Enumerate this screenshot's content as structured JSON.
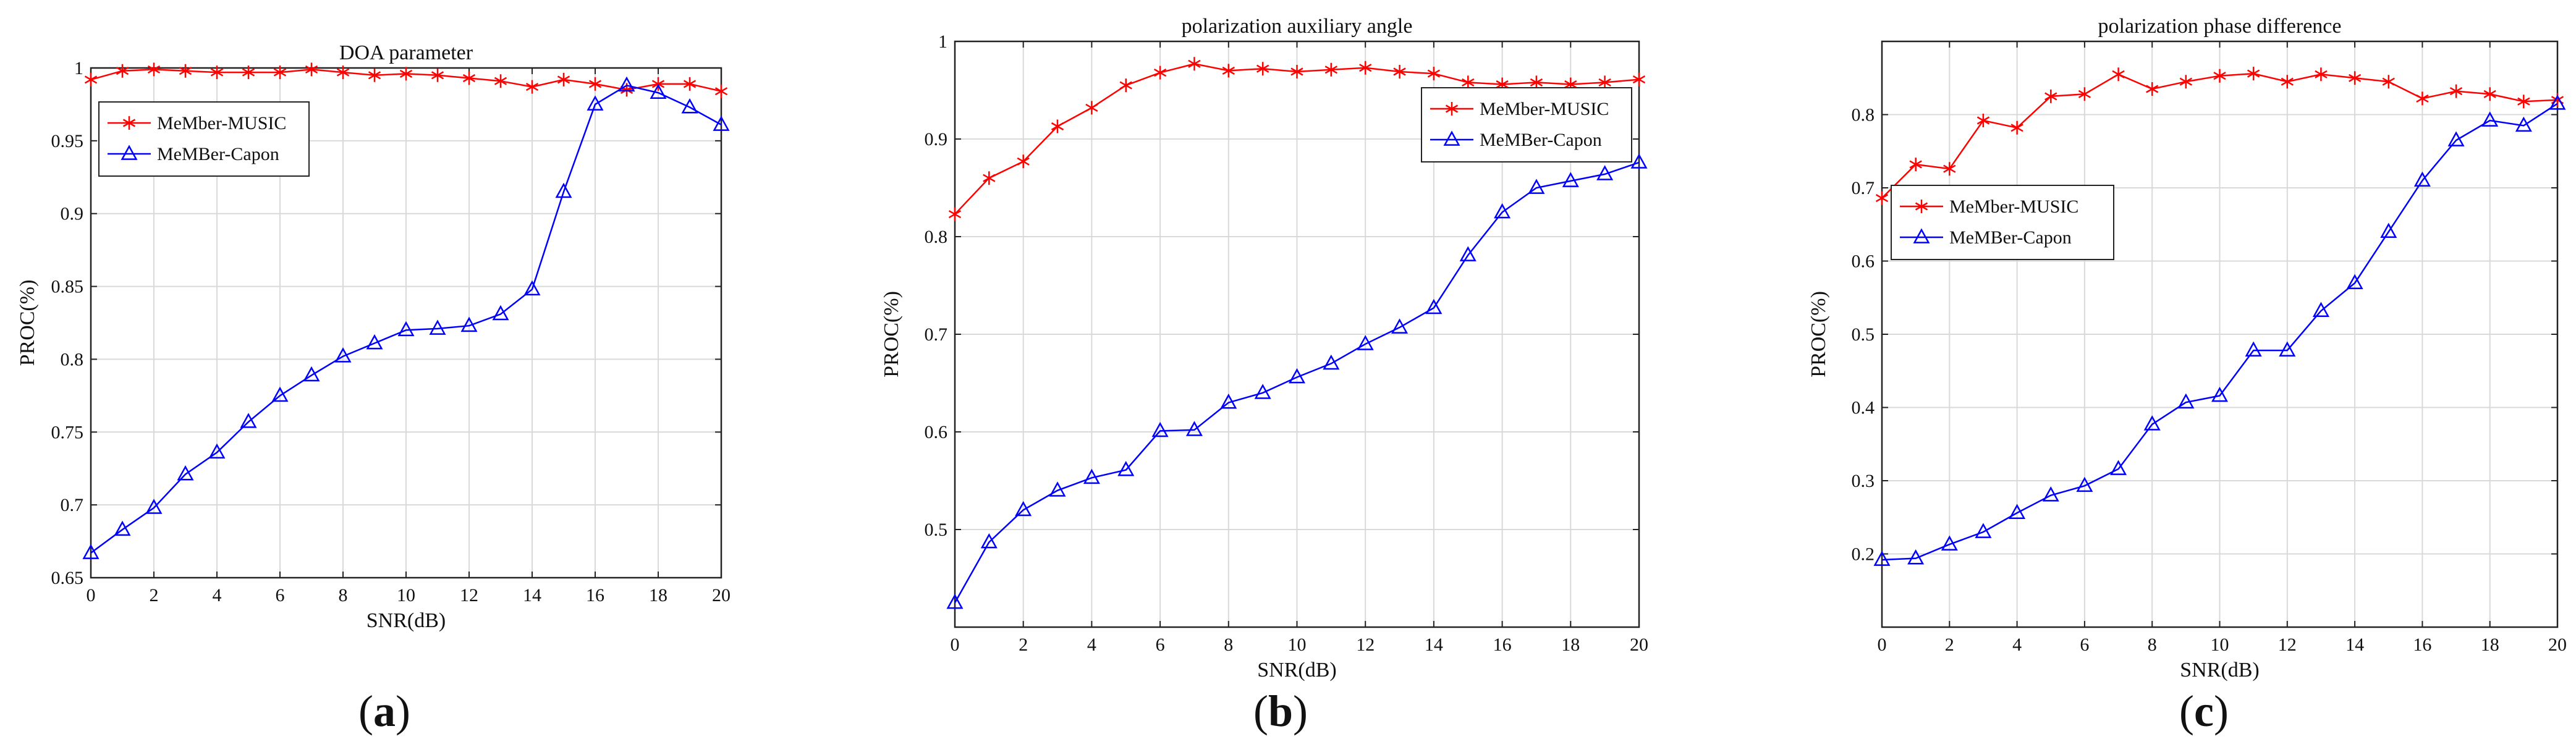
{
  "chart_data": [
    {
      "type": "line",
      "panel_label": "a",
      "title": "DOA parameter",
      "xlabel": "SNR(dB)",
      "ylabel": "PROC(%)",
      "xlim": [
        0,
        20
      ],
      "ylim": [
        0.65,
        1.0
      ],
      "xticks": [
        0,
        2,
        4,
        6,
        8,
        10,
        12,
        14,
        16,
        18,
        20
      ],
      "yticks": [
        0.65,
        0.7,
        0.75,
        0.8,
        0.85,
        0.9,
        0.95,
        1.0
      ],
      "ytick_labels": [
        "0.65",
        "0.7",
        "0.75",
        "0.8",
        "0.85",
        "0.9",
        "0.95",
        "1"
      ],
      "grid": true,
      "legend_position": "upper-left",
      "x": [
        0,
        1,
        2,
        3,
        4,
        5,
        6,
        7,
        8,
        9,
        10,
        11,
        12,
        13,
        14,
        15,
        16,
        17,
        18,
        19,
        20
      ],
      "series": [
        {
          "name": "MeMber-MUSIC",
          "color": "#ff0000",
          "marker": "star",
          "values": [
            0.992,
            0.998,
            0.999,
            0.998,
            0.997,
            0.997,
            0.997,
            0.999,
            0.997,
            0.995,
            0.996,
            0.995,
            0.993,
            0.991,
            0.987,
            0.992,
            0.989,
            0.985,
            0.989,
            0.989,
            0.984
          ]
        },
        {
          "name": "MeMBer-Capon",
          "color": "#0000ff",
          "marker": "triangle",
          "values": [
            0.667,
            0.683,
            0.698,
            0.721,
            0.736,
            0.757,
            0.775,
            0.789,
            0.802,
            0.811,
            0.82,
            0.821,
            0.823,
            0.831,
            0.848,
            0.915,
            0.975,
            0.988,
            0.983,
            0.973,
            0.961
          ]
        }
      ]
    },
    {
      "type": "line",
      "panel_label": "b",
      "title": "polarization auxiliary angle",
      "xlabel": "SNR(dB)",
      "ylabel": "PROC(%)",
      "xlim": [
        0,
        20
      ],
      "ylim": [
        0.4,
        1.0
      ],
      "xticks": [
        0,
        2,
        4,
        6,
        8,
        10,
        12,
        14,
        16,
        18,
        20
      ],
      "yticks": [
        0.5,
        0.6,
        0.7,
        0.8,
        0.9,
        1.0
      ],
      "ytick_labels": [
        "0.5",
        "0.6",
        "0.7",
        "0.8",
        "0.9",
        "1"
      ],
      "grid": true,
      "legend_position": "upper-right",
      "x": [
        0,
        1,
        2,
        3,
        4,
        5,
        6,
        7,
        8,
        9,
        10,
        11,
        12,
        13,
        14,
        15,
        16,
        17,
        18,
        19,
        20
      ],
      "series": [
        {
          "name": "MeMber-MUSIC",
          "color": "#ff0000",
          "marker": "star",
          "values": [
            0.823,
            0.86,
            0.877,
            0.913,
            0.932,
            0.955,
            0.968,
            0.977,
            0.97,
            0.972,
            0.969,
            0.971,
            0.973,
            0.969,
            0.967,
            0.958,
            0.956,
            0.958,
            0.956,
            0.958,
            0.961
          ]
        },
        {
          "name": "MeMBer-Capon",
          "color": "#0000ff",
          "marker": "triangle",
          "values": [
            0.425,
            0.487,
            0.52,
            0.54,
            0.553,
            0.561,
            0.601,
            0.602,
            0.63,
            0.64,
            0.656,
            0.67,
            0.69,
            0.707,
            0.727,
            0.781,
            0.825,
            0.85,
            0.857,
            0.864,
            0.876
          ]
        }
      ]
    },
    {
      "type": "line",
      "panel_label": "c",
      "title": "polarization phase difference",
      "xlabel": "SNR(dB)",
      "ylabel": "PROC(%)",
      "xlim": [
        0,
        20
      ],
      "ylim": [
        0.1,
        0.9
      ],
      "xticks": [
        0,
        2,
        4,
        6,
        8,
        10,
        12,
        14,
        16,
        18,
        20
      ],
      "yticks": [
        0.2,
        0.3,
        0.4,
        0.5,
        0.6,
        0.7,
        0.8
      ],
      "ytick_labels": [
        "0.2",
        "0.3",
        "0.4",
        "0.5",
        "0.6",
        "0.7",
        "0.8"
      ],
      "grid": true,
      "legend_position": "middle-left",
      "x": [
        0,
        1,
        2,
        3,
        4,
        5,
        6,
        7,
        8,
        9,
        10,
        11,
        12,
        13,
        14,
        15,
        16,
        17,
        18,
        19,
        20
      ],
      "series": [
        {
          "name": "MeMber-MUSIC",
          "color": "#ff0000",
          "marker": "star",
          "values": [
            0.686,
            0.732,
            0.726,
            0.792,
            0.782,
            0.825,
            0.828,
            0.855,
            0.835,
            0.845,
            0.853,
            0.856,
            0.845,
            0.855,
            0.85,
            0.845,
            0.822,
            0.832,
            0.828,
            0.818,
            0.82
          ]
        },
        {
          "name": "MeMBer-Capon",
          "color": "#0000ff",
          "marker": "triangle",
          "values": [
            0.192,
            0.194,
            0.213,
            0.23,
            0.256,
            0.28,
            0.293,
            0.316,
            0.377,
            0.407,
            0.416,
            0.478,
            0.478,
            0.532,
            0.57,
            0.64,
            0.71,
            0.765,
            0.792,
            0.785,
            0.815
          ]
        }
      ]
    }
  ]
}
